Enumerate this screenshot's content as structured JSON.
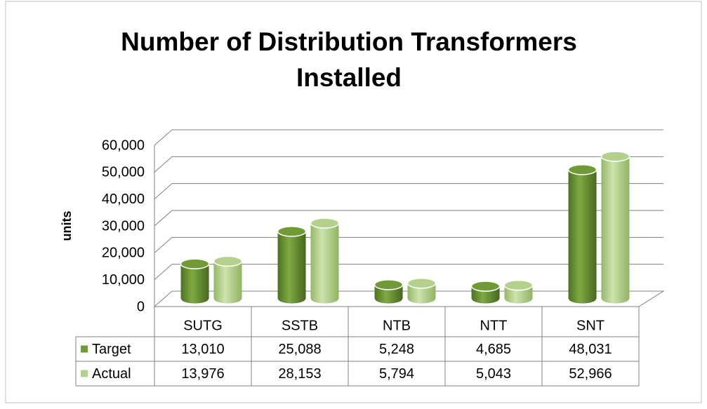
{
  "chart_data": {
    "type": "bar3d",
    "title": [
      "Number of Distribution Transformers",
      "Installed"
    ],
    "ylabel": "units",
    "categories": [
      "SUTG",
      "SSTB",
      "NTB",
      "NTT",
      "SNT"
    ],
    "series": [
      {
        "name": "Target",
        "color": "#6f9a36",
        "values": [
          13010,
          25088,
          5248,
          4685,
          48031
        ],
        "value_labels": [
          "13,010",
          "25,088",
          "5,248",
          "4,685",
          "48,031"
        ]
      },
      {
        "name": "Actual",
        "color": "#b3d18a",
        "values": [
          13976,
          28153,
          5794,
          5043,
          52966
        ],
        "value_labels": [
          "13,976",
          "28,153",
          "5,794",
          "5,043",
          "52,966"
        ]
      }
    ],
    "ylim": [
      0,
      60000
    ],
    "yticks": [
      0,
      {
        "value": 10000,
        "label": "10,000"
      },
      {
        "value": 20000,
        "label": "20,000"
      },
      {
        "value": 30000,
        "label": "30,000"
      },
      {
        "value": 40000,
        "label": "40,000"
      },
      {
        "value": 50000,
        "label": "50,000"
      },
      {
        "value": 60000,
        "label": "60,000"
      }
    ],
    "grid": true
  }
}
